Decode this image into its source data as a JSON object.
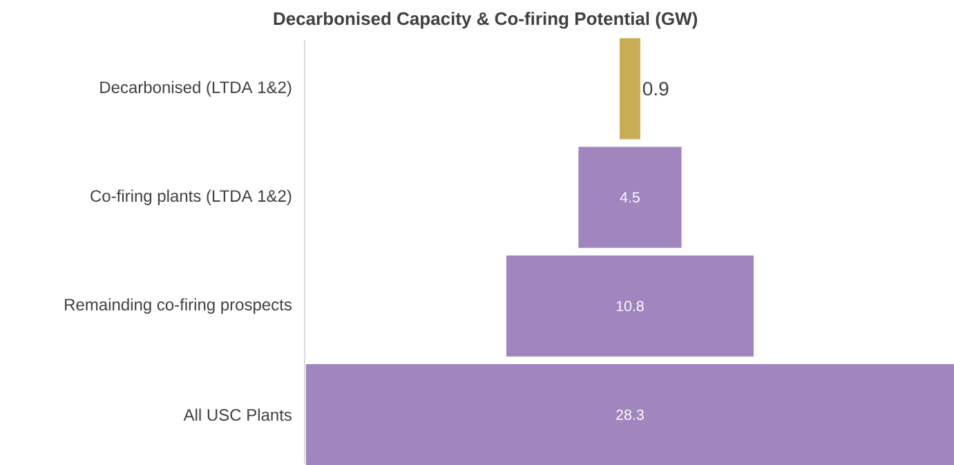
{
  "chart_data": {
    "type": "other",
    "title": "Decarbonised Capacity & Co-firing Potential (GW)",
    "categories": [
      "Decarbonised (LTDA 1&2)",
      "Co-firing plants (LTDA 1&2)",
      "Remainding co-firing prospects",
      "All USC Plants"
    ],
    "values": [
      0.9,
      4.5,
      10.8,
      28.3
    ],
    "colors": [
      "#c9ad55",
      "#a085be",
      "#a085be",
      "#a085be"
    ],
    "data_labels": true
  }
}
